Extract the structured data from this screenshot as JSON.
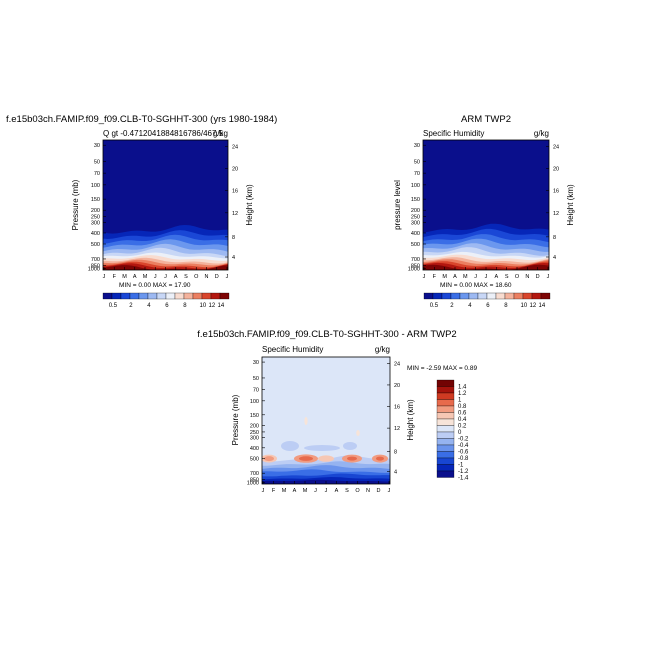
{
  "colors": {
    "sh": [
      "#0a0f8c",
      "#0626b8",
      "#1a47d6",
      "#3a6ee6",
      "#6b97ee",
      "#9db9f2",
      "#c8d7f6",
      "#ecf0f8",
      "#f8dcd0",
      "#f4b29c",
      "#eb7f61",
      "#d9452c",
      "#b3170f",
      "#7d0404"
    ],
    "diff": [
      "#0a0f8c",
      "#0626b8",
      "#1846d2",
      "#3a6ee6",
      "#6a93ec",
      "#95b3f0",
      "#bccdf4",
      "#dce6f8",
      "#f7e4d9",
      "#f6c7b4",
      "#f19b80",
      "#e76a4c",
      "#cf3a22",
      "#a5130c",
      "#720303"
    ]
  },
  "chart_data": [
    {
      "type": "heatmap",
      "title": "f.e15b03ch.FAMIP.f09_f09.CLB-T0-SGHHT-300 (yrs 1980-1984)",
      "left_text": "Q gt -0.4712041884816786/467.5",
      "right_text": "g/kg",
      "ylabel": "Pressure (mb)",
      "ylabel_right": "Height (km)",
      "x_ticks": [
        "J",
        "F",
        "M",
        "A",
        "M",
        "J",
        "J",
        "A",
        "S",
        "O",
        "N",
        "D",
        "J"
      ],
      "y_ticks": [
        "30",
        "50",
        "70",
        "100",
        "150",
        "200",
        "250",
        "300",
        "400",
        "500",
        "700",
        "850",
        "1000"
      ],
      "y_ticks_right": [
        "24",
        "20",
        "16",
        "12",
        "8",
        "4"
      ],
      "min_max": "MIN =    0.00 MAX =   17.90",
      "colorbar_labels": [
        "0.5",
        "2",
        "4",
        "6",
        "8",
        "10",
        "12",
        "14"
      ]
    },
    {
      "type": "heatmap",
      "title": "ARM TWP2",
      "left_text": "Specific Humidity",
      "right_text": "g/kg",
      "ylabel": "pressure level",
      "ylabel_right": "Height (km)",
      "x_ticks": [
        "J",
        "F",
        "M",
        "A",
        "M",
        "J",
        "J",
        "A",
        "S",
        "O",
        "N",
        "D",
        "J"
      ],
      "y_ticks": [
        "30",
        "50",
        "70",
        "100",
        "150",
        "200",
        "250",
        "300",
        "400",
        "500",
        "700",
        "850",
        "1000"
      ],
      "y_ticks_right": [
        "24",
        "20",
        "16",
        "12",
        "8",
        "4"
      ],
      "min_max": "MIN =    0.00 MAX =   18.60",
      "colorbar_labels": [
        "0.5",
        "2",
        "4",
        "6",
        "8",
        "10",
        "12",
        "14"
      ]
    },
    {
      "type": "heatmap",
      "title": "f.e15b03ch.FAMIP.f09_f09.CLB-T0-SGHHT-300 - ARM TWP2",
      "left_text": "Specific Humidity",
      "right_text": "g/kg",
      "ylabel": "Pressure (mb)",
      "ylabel_right": "Height (km)",
      "x_ticks": [
        "J",
        "F",
        "M",
        "A",
        "M",
        "J",
        "J",
        "A",
        "S",
        "O",
        "N",
        "D",
        "J"
      ],
      "y_ticks": [
        "30",
        "50",
        "70",
        "100",
        "150",
        "200",
        "250",
        "300",
        "400",
        "500",
        "700",
        "850",
        "1000"
      ],
      "y_ticks_right": [
        "24",
        "20",
        "16",
        "12",
        "8",
        "4"
      ],
      "min_max": "MIN =   -2.59 MAX =    0.89",
      "colorbar_labels": [
        "1.4",
        "1.2",
        "1",
        "0.8",
        "0.6",
        "0.4",
        "0.2",
        "0",
        "-0.2",
        "-0.4",
        "-0.6",
        "-0.8",
        "-1",
        "-1.2",
        "-1.4"
      ]
    }
  ]
}
